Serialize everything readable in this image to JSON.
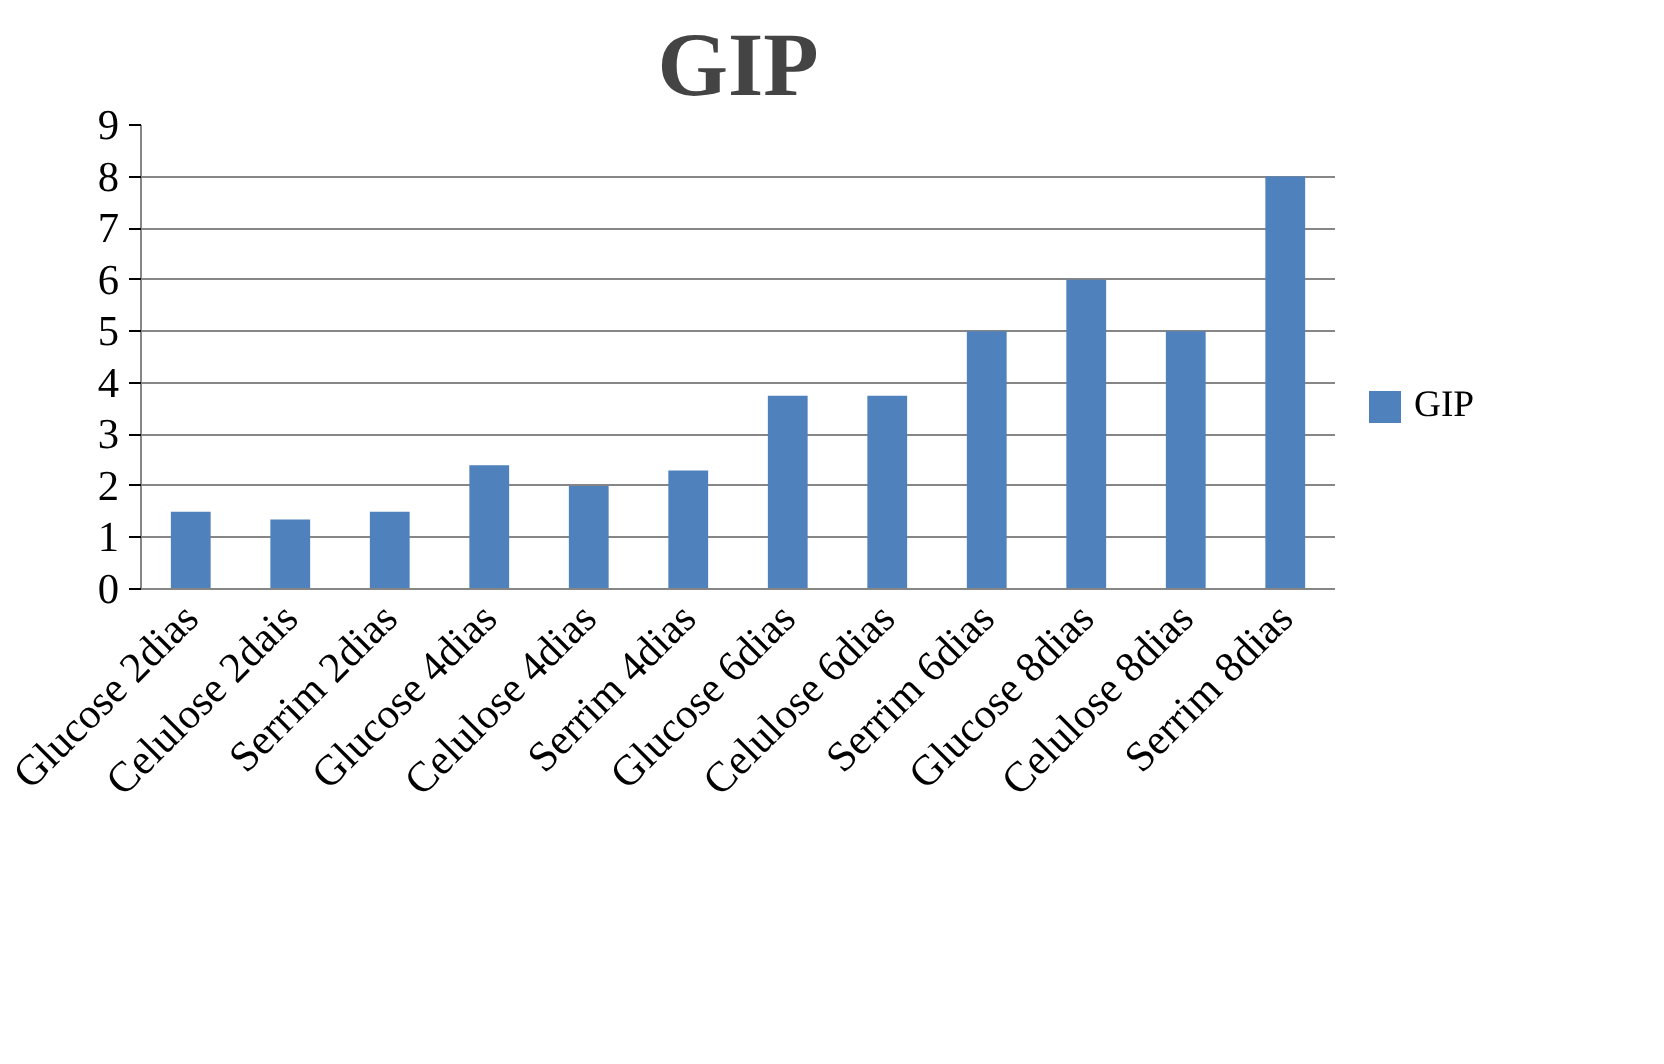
{
  "chart_data": {
    "type": "bar",
    "title": "GIP",
    "categories": [
      "Glucose 2dias",
      "Celulose 2dais",
      "Serrim 2dias",
      "Glucose 4dias",
      "Celulose 4dias",
      "Serrim 4dias",
      "Glucose 6dias",
      "Celulose 6dias",
      "Serrim 6dias",
      "Glucose 8dias",
      "Celulose 8dias",
      "Serrim 8dias"
    ],
    "series": [
      {
        "name": "GIP",
        "color": "#4f81bd",
        "values": [
          1.5,
          1.35,
          1.5,
          2.4,
          2.0,
          2.3,
          3.75,
          3.75,
          5,
          6,
          5,
          8
        ]
      }
    ],
    "ylim": [
      0,
      9
    ],
    "yticks": [
      0,
      1,
      2,
      3,
      4,
      5,
      6,
      7,
      8,
      9
    ],
    "grid": "y",
    "legend": "right"
  }
}
